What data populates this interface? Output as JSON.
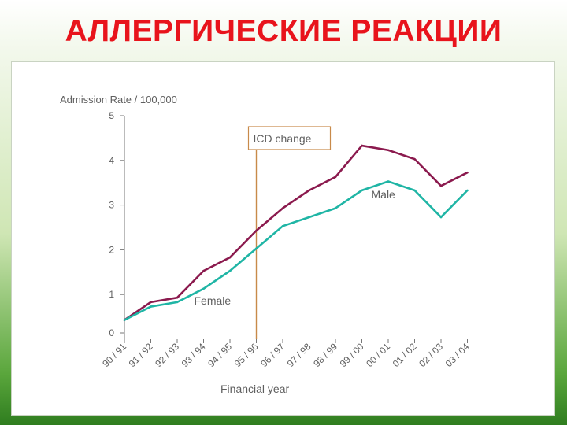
{
  "slide": {
    "title": "АЛЛЕРГИЧЕСКИЕ РЕАКЦИИ"
  },
  "chart_data": {
    "type": "line",
    "ylabel": "Admission Rate / 100,000",
    "xlabel": "Financial year",
    "ylim": [
      0,
      5
    ],
    "yticks": [
      "0",
      "1",
      "2",
      "3",
      "4",
      "5"
    ],
    "categories": [
      "90 / 91",
      "91 / 92",
      "92 / 93",
      "93 / 94",
      "94 / 95",
      "95 / 96",
      "96 / 97",
      "97 / 98",
      "98 / 99",
      "99 / 00",
      "00 / 01",
      "01 / 02",
      "02 / 03",
      "03 / 04"
    ],
    "series": [
      {
        "name": "Female",
        "color": "#8b1a4e",
        "values": [
          0.5,
          0.9,
          1.0,
          1.6,
          1.9,
          2.5,
          3.0,
          3.4,
          3.7,
          4.4,
          4.3,
          4.1,
          3.5,
          3.8
        ]
      },
      {
        "name": "Male",
        "color": "#1fb5a5",
        "values": [
          0.5,
          0.8,
          0.9,
          1.2,
          1.6,
          2.1,
          2.6,
          2.8,
          3.0,
          3.4,
          3.6,
          3.4,
          2.8,
          3.4
        ]
      }
    ],
    "annotation": {
      "label": "ICD change",
      "x": "95 / 96"
    },
    "grid": false,
    "legend": "inline labels"
  }
}
